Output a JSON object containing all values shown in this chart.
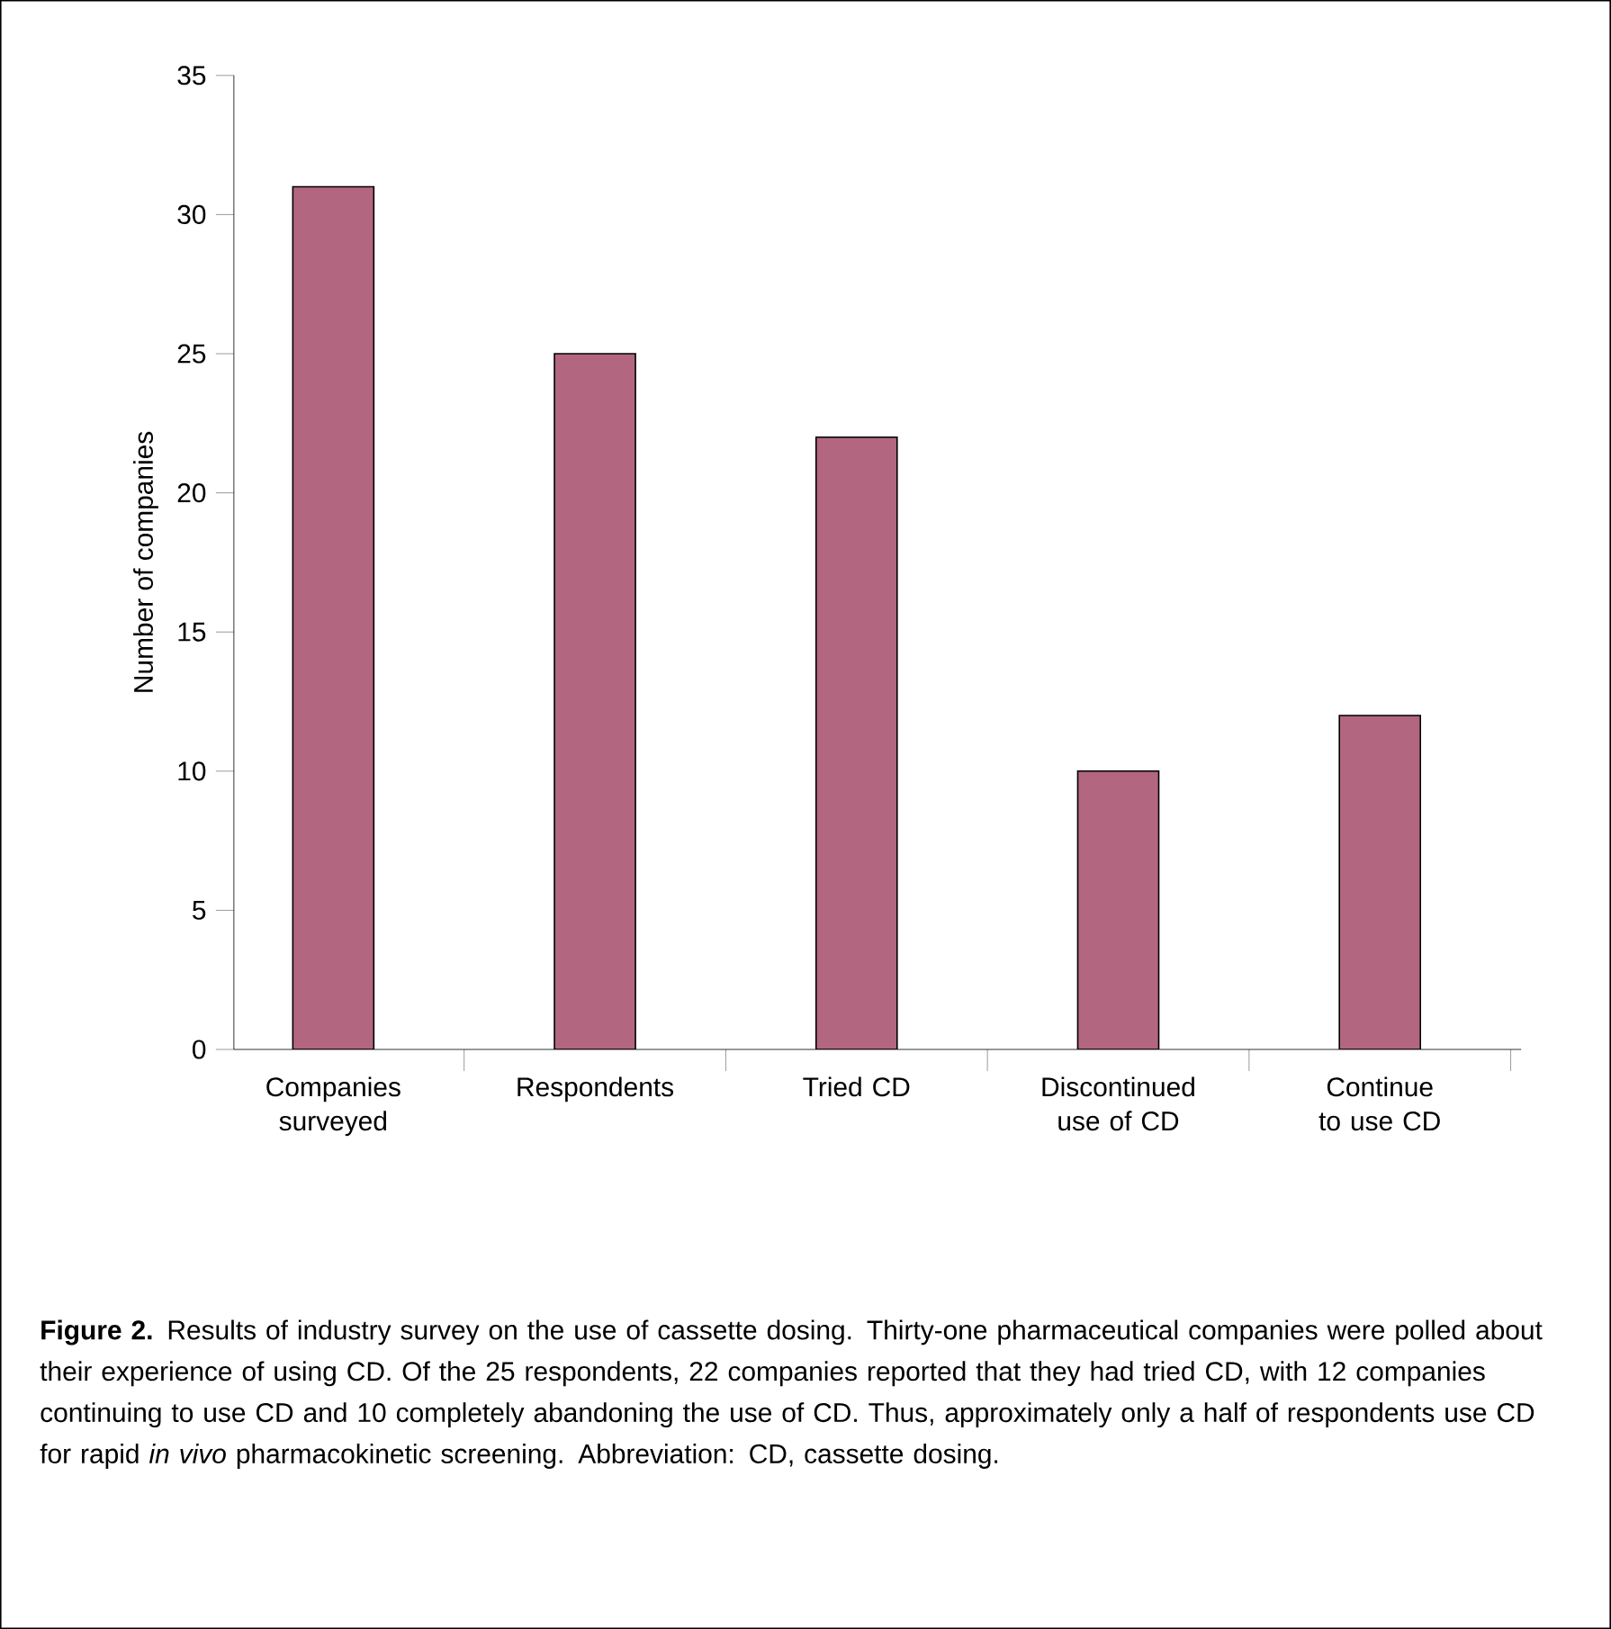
{
  "chart_data": {
    "type": "bar",
    "ylabel": "Number of companies",
    "categories": [
      "Companies surveyed",
      "Respondents",
      "Tried CD",
      "Discontinued use of CD",
      "Continue to use CD"
    ],
    "values": [
      31,
      25,
      22,
      10,
      12
    ],
    "color": "#b3667f",
    "ylim": [
      0,
      35
    ],
    "yticks": [
      0,
      5,
      10,
      15,
      20,
      25,
      30,
      35
    ],
    "annotations": [
      "**Figure 2.** Results of industry survey on the use of cassette dosing. Thirty-one pharmaceutical companies were polled about their experience of using CD. Of the 25 respondents, 22 companies reported that they had tried CD, with 12 companies continuing to use CD and 10 completely abandoning the use of CD. Thus, approximately only a half of respondents use CD for rapid *in vivo* pharmacokinetic screening. Abbreviation: CD, cassette dosing."
    ]
  }
}
